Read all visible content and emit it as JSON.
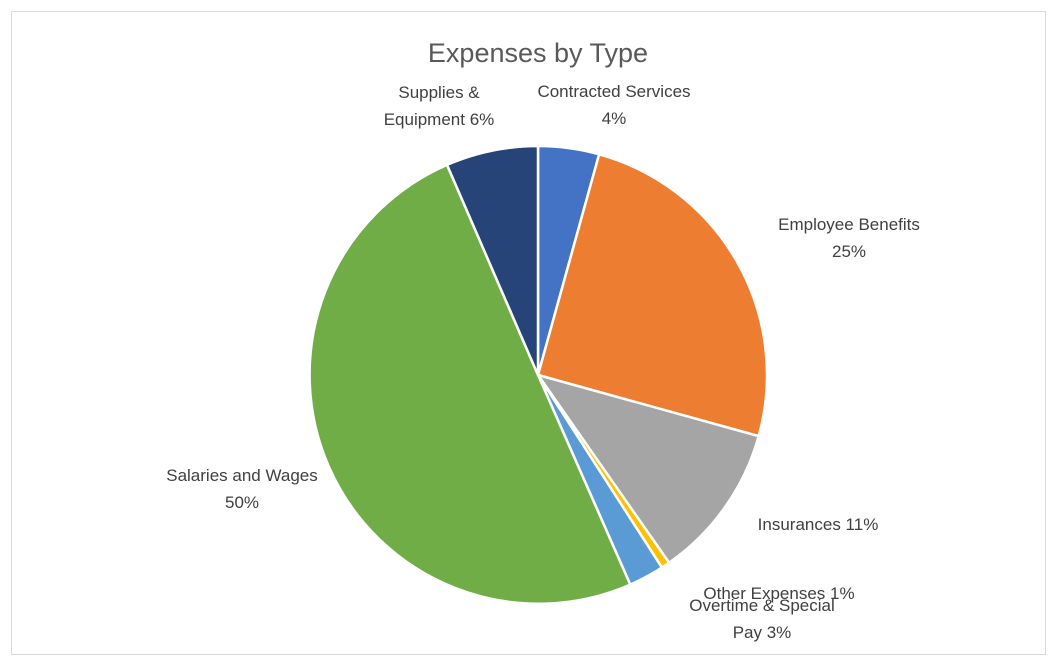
{
  "chart_data": {
    "type": "pie",
    "title": "Expenses by Type",
    "slices": [
      {
        "name": "Contracted Services",
        "value": 4.3,
        "label_lines": [
          "Contracted Services",
          "4%"
        ],
        "color": "#4472c4"
      },
      {
        "name": "Employee Benefits",
        "value": 25.0,
        "label_lines": [
          "Employee Benefits",
          "25%"
        ],
        "color": "#ed7d31"
      },
      {
        "name": "Insurances",
        "value": 11.0,
        "label_lines": [
          "Insurances 11%"
        ],
        "color": "#a5a5a5"
      },
      {
        "name": "Other Expenses",
        "value": 0.6,
        "label_lines": [
          "Other Expenses 1%"
        ],
        "color": "#ffc000"
      },
      {
        "name": "Overtime & Special Pay",
        "value": 2.5,
        "label_lines": [
          "Overtime & Special",
          "Pay 3%"
        ],
        "color": "#5b9bd5"
      },
      {
        "name": "Salaries and Wages",
        "value": 50.1,
        "label_lines": [
          "Salaries and Wages",
          "50%"
        ],
        "color": "#70ad47"
      },
      {
        "name": "Supplies & Equipment",
        "value": 6.5,
        "label_lines": [
          "Supplies &",
          "Equipment 6%"
        ],
        "color": "#264478"
      }
    ],
    "legend": "none",
    "data_labels": "outside"
  }
}
